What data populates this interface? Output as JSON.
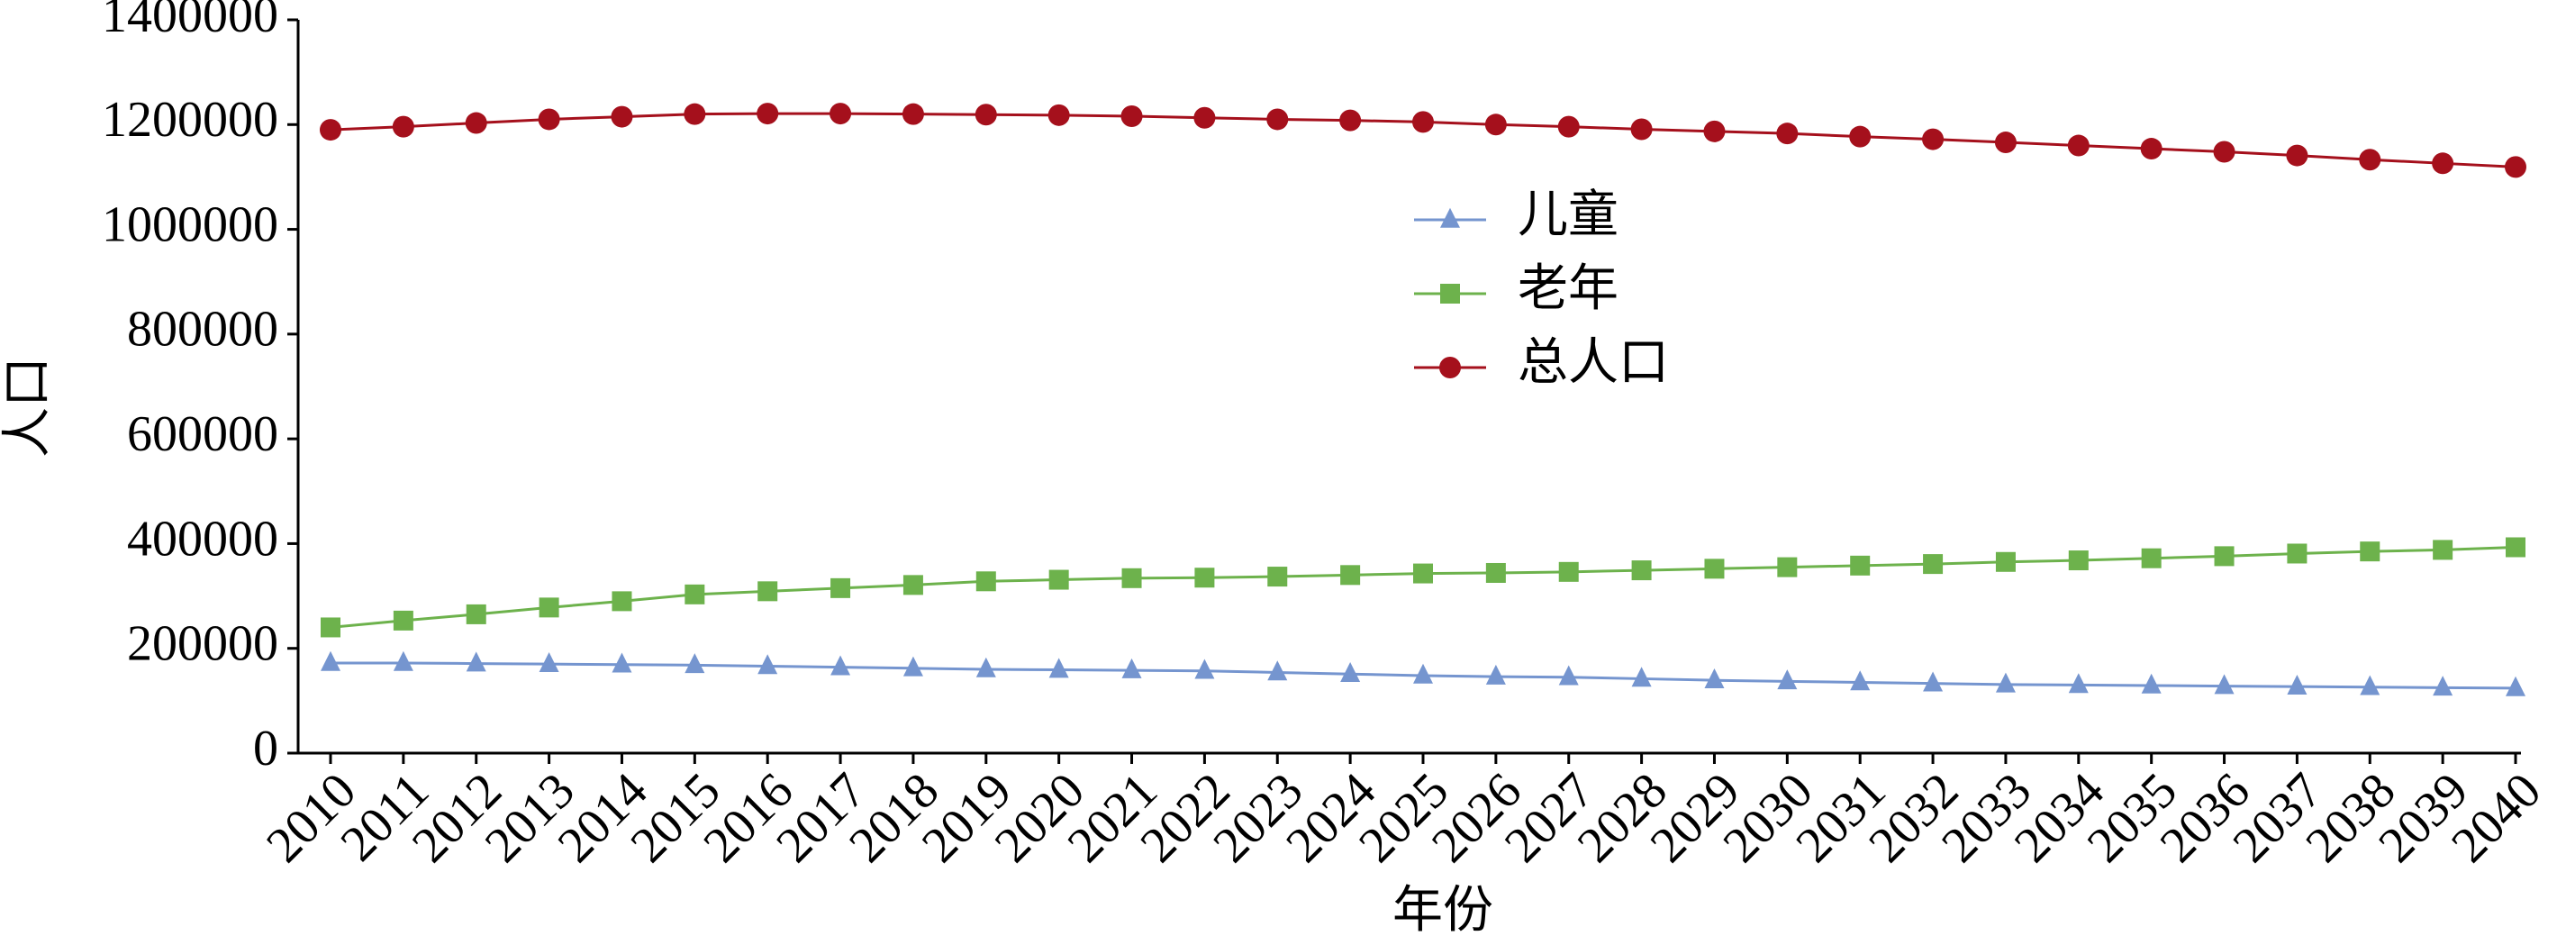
{
  "chart_data": {
    "type": "line",
    "xlabel": "年份",
    "ylabel": "人口",
    "categories": [
      "2010",
      "2011",
      "2012",
      "2013",
      "2014",
      "2015",
      "2016",
      "2017",
      "2018",
      "2019",
      "2020",
      "2021",
      "2022",
      "2023",
      "2024",
      "2025",
      "2026",
      "2027",
      "2028",
      "2029",
      "2030",
      "2031",
      "2032",
      "2033",
      "2034",
      "2035",
      "2036",
      "2037",
      "2038",
      "2039",
      "2040"
    ],
    "series": [
      {
        "name": "儿童",
        "color": "#7595cf",
        "marker": "triangle",
        "values": [
          172000,
          172000,
          171000,
          170000,
          169000,
          168000,
          166000,
          164000,
          162000,
          160000,
          159000,
          158000,
          157000,
          154000,
          151000,
          148000,
          146000,
          145000,
          142000,
          139000,
          137000,
          135000,
          133000,
          131000,
          130000,
          129000,
          128000,
          127000,
          126000,
          125000,
          124000
        ]
      },
      {
        "name": "老年",
        "color": "#6db24c",
        "marker": "square",
        "values": [
          240000,
          253000,
          265000,
          278000,
          290000,
          303000,
          309000,
          315000,
          321000,
          328000,
          331000,
          334000,
          335000,
          337000,
          340000,
          343000,
          344000,
          346000,
          349000,
          352000,
          355000,
          358000,
          361000,
          365000,
          368000,
          372000,
          376000,
          381000,
          385000,
          388000,
          393000
        ]
      },
      {
        "name": "总人口",
        "color": "#a5101c",
        "marker": "circle",
        "values": [
          1190000,
          1196000,
          1203000,
          1210000,
          1215000,
          1220000,
          1221000,
          1221000,
          1220000,
          1219000,
          1218000,
          1216000,
          1213000,
          1210000,
          1208000,
          1205000,
          1200000,
          1196000,
          1191000,
          1187000,
          1183000,
          1177000,
          1172000,
          1166000,
          1160000,
          1154000,
          1148000,
          1141000,
          1133000,
          1126000,
          1119000
        ]
      }
    ],
    "ylim": [
      0,
      1400000
    ],
    "yticks": [
      0,
      200000,
      400000,
      600000,
      800000,
      1000000,
      1200000,
      1400000
    ],
    "grid": false
  }
}
